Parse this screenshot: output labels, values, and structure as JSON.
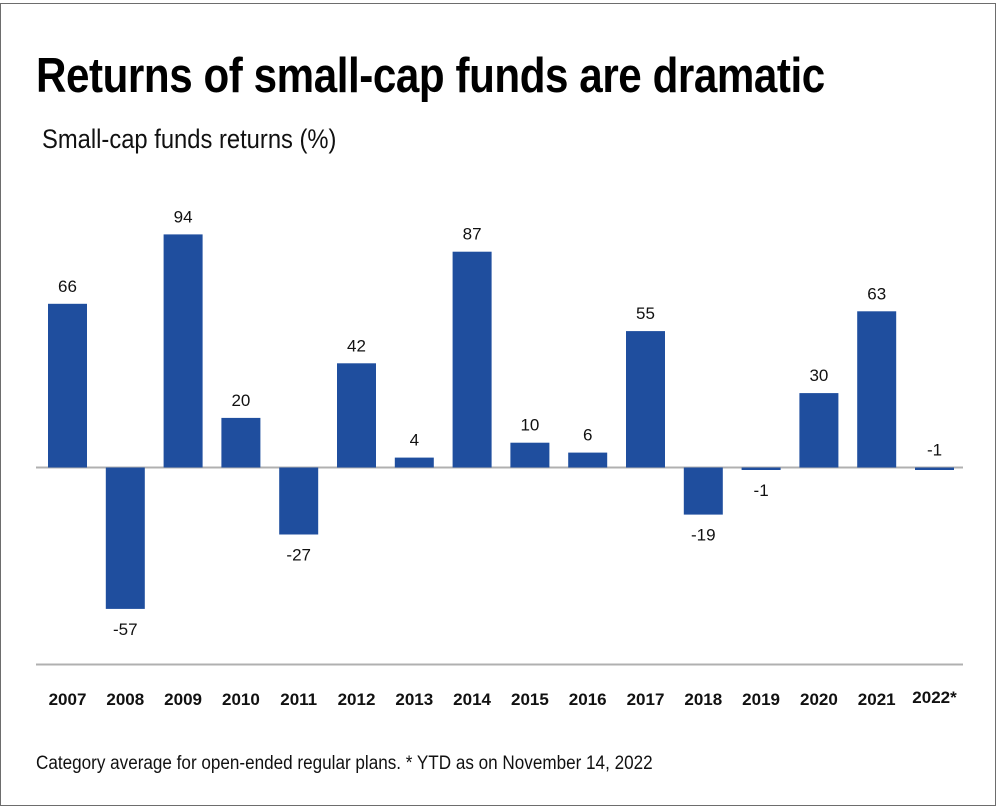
{
  "title": "Returns of small-cap funds are dramatic",
  "subtitle": "Small-cap funds returns (%)",
  "footnote": "Category average for open-ended regular plans. * YTD as on November 14, 2022",
  "colors": {
    "bar": "#1f4e9e",
    "zero_line": "#b0b0b0",
    "axis_line": "#b0b0b0",
    "text": "#111111"
  },
  "chart_data": {
    "type": "bar",
    "title": "Returns of small-cap funds are dramatic",
    "subtitle": "Small-cap funds returns (%)",
    "xlabel": "",
    "ylabel": "Small-cap funds returns (%)",
    "categories": [
      "2007",
      "2008",
      "2009",
      "2010",
      "2011",
      "2012",
      "2013",
      "2014",
      "2015",
      "2016",
      "2017",
      "2018",
      "2019",
      "2020",
      "2021",
      "2022*"
    ],
    "values": [
      66,
      -57,
      94,
      20,
      -27,
      42,
      4,
      87,
      10,
      6,
      55,
      -19,
      -1,
      30,
      63,
      -1
    ],
    "data_labels": [
      "66",
      "-57",
      "94",
      "20",
      "-27",
      "42",
      "4",
      "87",
      "10",
      "6",
      "55",
      "-19",
      "-1",
      "30",
      "63",
      "-1"
    ],
    "ylim": [
      -80,
      94
    ],
    "grid": false,
    "legend": "none",
    "annotations": [
      "2022* label positioned above the near-zero bar",
      "Zero baseline drawn across the plot"
    ]
  }
}
